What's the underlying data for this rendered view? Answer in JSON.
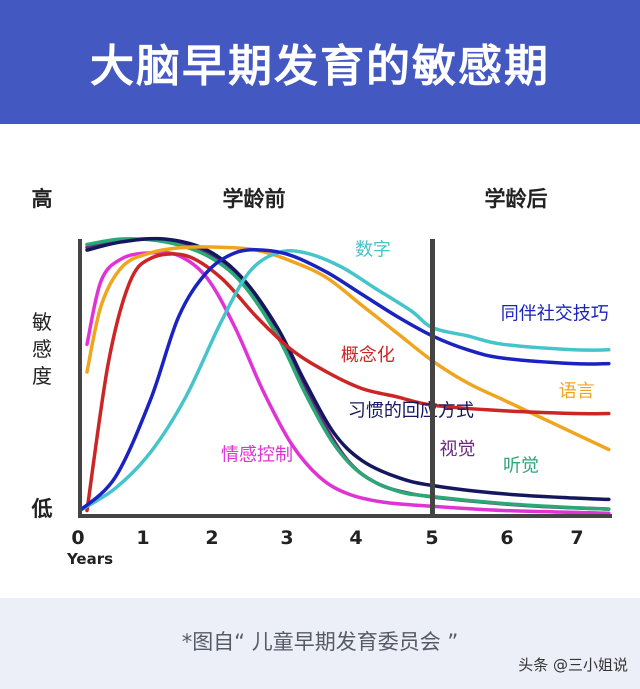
{
  "header": {
    "title": "大脑早期发育的敏感期"
  },
  "chart_data": {
    "type": "line",
    "title": "大脑早期发育的敏感期",
    "xlabel": "Years",
    "ylabel": "敏感度",
    "y_high_label": "高",
    "y_low_label": "低",
    "x_ticks": [
      0,
      1,
      2,
      3,
      4,
      5,
      6,
      7
    ],
    "xlim": [
      0,
      7.5
    ],
    "ylim": [
      0,
      1
    ],
    "grid": false,
    "regions": [
      {
        "label": "学龄前",
        "x_from": 0,
        "x_to": 5
      },
      {
        "label": "学龄后",
        "x_from": 5,
        "x_to": 7.5
      }
    ],
    "divider_x": 5,
    "series": [
      {
        "name": "情感控制",
        "color": "#e033d6",
        "points": [
          [
            0.1,
            0.62
          ],
          [
            0.3,
            0.85
          ],
          [
            0.6,
            0.93
          ],
          [
            1.0,
            0.95
          ],
          [
            1.4,
            0.94
          ],
          [
            1.8,
            0.86
          ],
          [
            2.2,
            0.68
          ],
          [
            2.6,
            0.45
          ],
          [
            3.0,
            0.26
          ],
          [
            3.4,
            0.14
          ],
          [
            3.8,
            0.08
          ],
          [
            4.3,
            0.05
          ],
          [
            5.0,
            0.035
          ],
          [
            6.0,
            0.02
          ],
          [
            7.5,
            0.01
          ]
        ]
      },
      {
        "name": "视觉",
        "color": "#6a2a7e",
        "points": [
          [
            0.1,
            0.97
          ],
          [
            0.5,
            0.99
          ],
          [
            1.0,
            1.0
          ],
          [
            1.5,
            0.98
          ],
          [
            2.0,
            0.92
          ],
          [
            2.5,
            0.78
          ],
          [
            3.0,
            0.56
          ],
          [
            3.4,
            0.36
          ],
          [
            3.8,
            0.2
          ],
          [
            4.2,
            0.12
          ],
          [
            4.7,
            0.08
          ],
          [
            5.5,
            0.055
          ],
          [
            6.5,
            0.035
          ],
          [
            7.5,
            0.025
          ]
        ]
      },
      {
        "name": "听觉",
        "color": "#2aa876",
        "points": [
          [
            0.1,
            0.98
          ],
          [
            0.6,
            1.0
          ],
          [
            1.2,
            0.99
          ],
          [
            1.8,
            0.94
          ],
          [
            2.3,
            0.84
          ],
          [
            2.8,
            0.65
          ],
          [
            3.2,
            0.44
          ],
          [
            3.6,
            0.26
          ],
          [
            4.0,
            0.15
          ],
          [
            4.5,
            0.09
          ],
          [
            5.0,
            0.07
          ],
          [
            6.0,
            0.045
          ],
          [
            7.0,
            0.03
          ],
          [
            7.5,
            0.025
          ]
        ]
      },
      {
        "name": "习惯的回应方式",
        "color": "#15175e",
        "points": [
          [
            0.1,
            0.96
          ],
          [
            0.6,
            0.99
          ],
          [
            1.2,
            1.0
          ],
          [
            1.8,
            0.96
          ],
          [
            2.3,
            0.86
          ],
          [
            2.8,
            0.68
          ],
          [
            3.2,
            0.48
          ],
          [
            3.6,
            0.3
          ],
          [
            4.0,
            0.2
          ],
          [
            4.5,
            0.14
          ],
          [
            5.0,
            0.11
          ],
          [
            6.0,
            0.08
          ],
          [
            7.0,
            0.065
          ],
          [
            7.5,
            0.06
          ]
        ]
      },
      {
        "name": "语言",
        "color": "#f0a51e",
        "points": [
          [
            0.1,
            0.52
          ],
          [
            0.3,
            0.76
          ],
          [
            0.6,
            0.9
          ],
          [
            1.0,
            0.95
          ],
          [
            1.5,
            0.97
          ],
          [
            2.0,
            0.97
          ],
          [
            2.5,
            0.96
          ],
          [
            3.0,
            0.92
          ],
          [
            3.5,
            0.86
          ],
          [
            4.0,
            0.76
          ],
          [
            4.5,
            0.66
          ],
          [
            5.0,
            0.56
          ],
          [
            5.5,
            0.48
          ],
          [
            6.0,
            0.42
          ],
          [
            6.5,
            0.36
          ],
          [
            7.0,
            0.3
          ],
          [
            7.5,
            0.24
          ]
        ]
      },
      {
        "name": "概念化",
        "color": "#cc2525",
        "points": [
          [
            0.1,
            0.02
          ],
          [
            0.4,
            0.55
          ],
          [
            0.7,
            0.84
          ],
          [
            1.0,
            0.93
          ],
          [
            1.5,
            0.94
          ],
          [
            2.0,
            0.86
          ],
          [
            2.5,
            0.72
          ],
          [
            3.0,
            0.6
          ],
          [
            3.5,
            0.52
          ],
          [
            4.0,
            0.46
          ],
          [
            4.5,
            0.43
          ],
          [
            5.0,
            0.4
          ],
          [
            6.0,
            0.38
          ],
          [
            7.0,
            0.37
          ],
          [
            7.5,
            0.37
          ]
        ]
      },
      {
        "name": "数字",
        "color": "#45c4cc",
        "points": [
          [
            0.0,
            0.02
          ],
          [
            0.5,
            0.1
          ],
          [
            1.0,
            0.23
          ],
          [
            1.5,
            0.43
          ],
          [
            2.0,
            0.7
          ],
          [
            2.4,
            0.88
          ],
          [
            2.8,
            0.95
          ],
          [
            3.2,
            0.95
          ],
          [
            3.7,
            0.9
          ],
          [
            4.2,
            0.82
          ],
          [
            4.7,
            0.74
          ],
          [
            5.0,
            0.68
          ],
          [
            5.5,
            0.65
          ],
          [
            6.0,
            0.62
          ],
          [
            7.0,
            0.6
          ],
          [
            7.5,
            0.6
          ]
        ]
      },
      {
        "name": "同伴社交技巧",
        "color": "#1a22c0",
        "points": [
          [
            0.0,
            0.02
          ],
          [
            0.5,
            0.14
          ],
          [
            1.0,
            0.42
          ],
          [
            1.4,
            0.72
          ],
          [
            1.8,
            0.88
          ],
          [
            2.2,
            0.95
          ],
          [
            2.6,
            0.96
          ],
          [
            3.0,
            0.94
          ],
          [
            3.5,
            0.88
          ],
          [
            4.0,
            0.8
          ],
          [
            4.5,
            0.72
          ],
          [
            5.0,
            0.65
          ],
          [
            5.5,
            0.6
          ],
          [
            6.0,
            0.57
          ],
          [
            7.0,
            0.55
          ],
          [
            7.5,
            0.55
          ]
        ]
      }
    ]
  },
  "caption": "*图自“ 儿童早期发育委员会 ”",
  "watermark": "头条 @三小姐说"
}
